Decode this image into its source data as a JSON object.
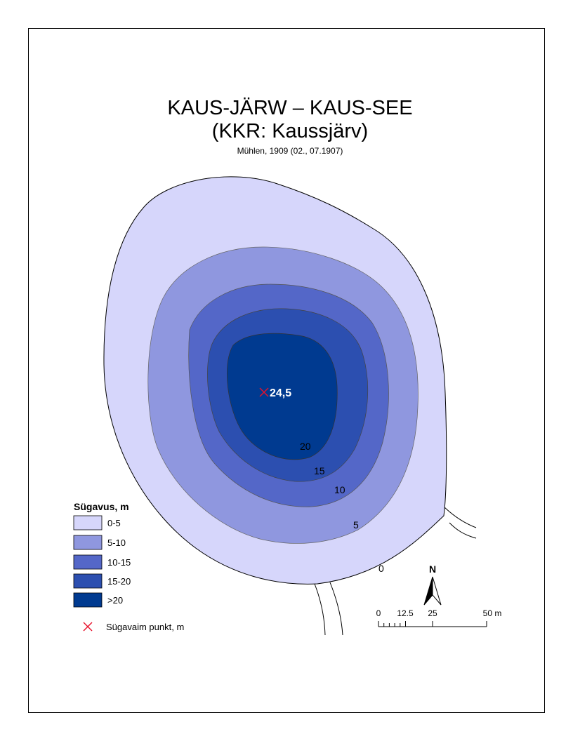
{
  "title": {
    "line1": "KAUS-JÄRW – KAUS-SEE",
    "line2": "(KKR: Kaussjärv)",
    "subtitle": "Mühlen, 1909 (02., 07.1907)"
  },
  "depth_max_label": "24,5",
  "contour_labels": [
    "20",
    "15",
    "10",
    "5",
    "0"
  ],
  "legend": {
    "title": "Sügavus, m",
    "classes": [
      {
        "label": "0-5",
        "color": "#d6d6fb"
      },
      {
        "label": "5-10",
        "color": "#8f97df"
      },
      {
        "label": "10-15",
        "color": "#5467c8"
      },
      {
        "label": "15-20",
        "color": "#2c4fb0"
      },
      {
        "label": ">20",
        "color": "#003a90"
      }
    ],
    "point_label": "Sügavaim punkt, m",
    "point_color": "#e8102a"
  },
  "north_arrow": {
    "label": "N"
  },
  "scale_bar": {
    "ticks": [
      "0",
      "12.5",
      "25",
      "50 m"
    ]
  }
}
